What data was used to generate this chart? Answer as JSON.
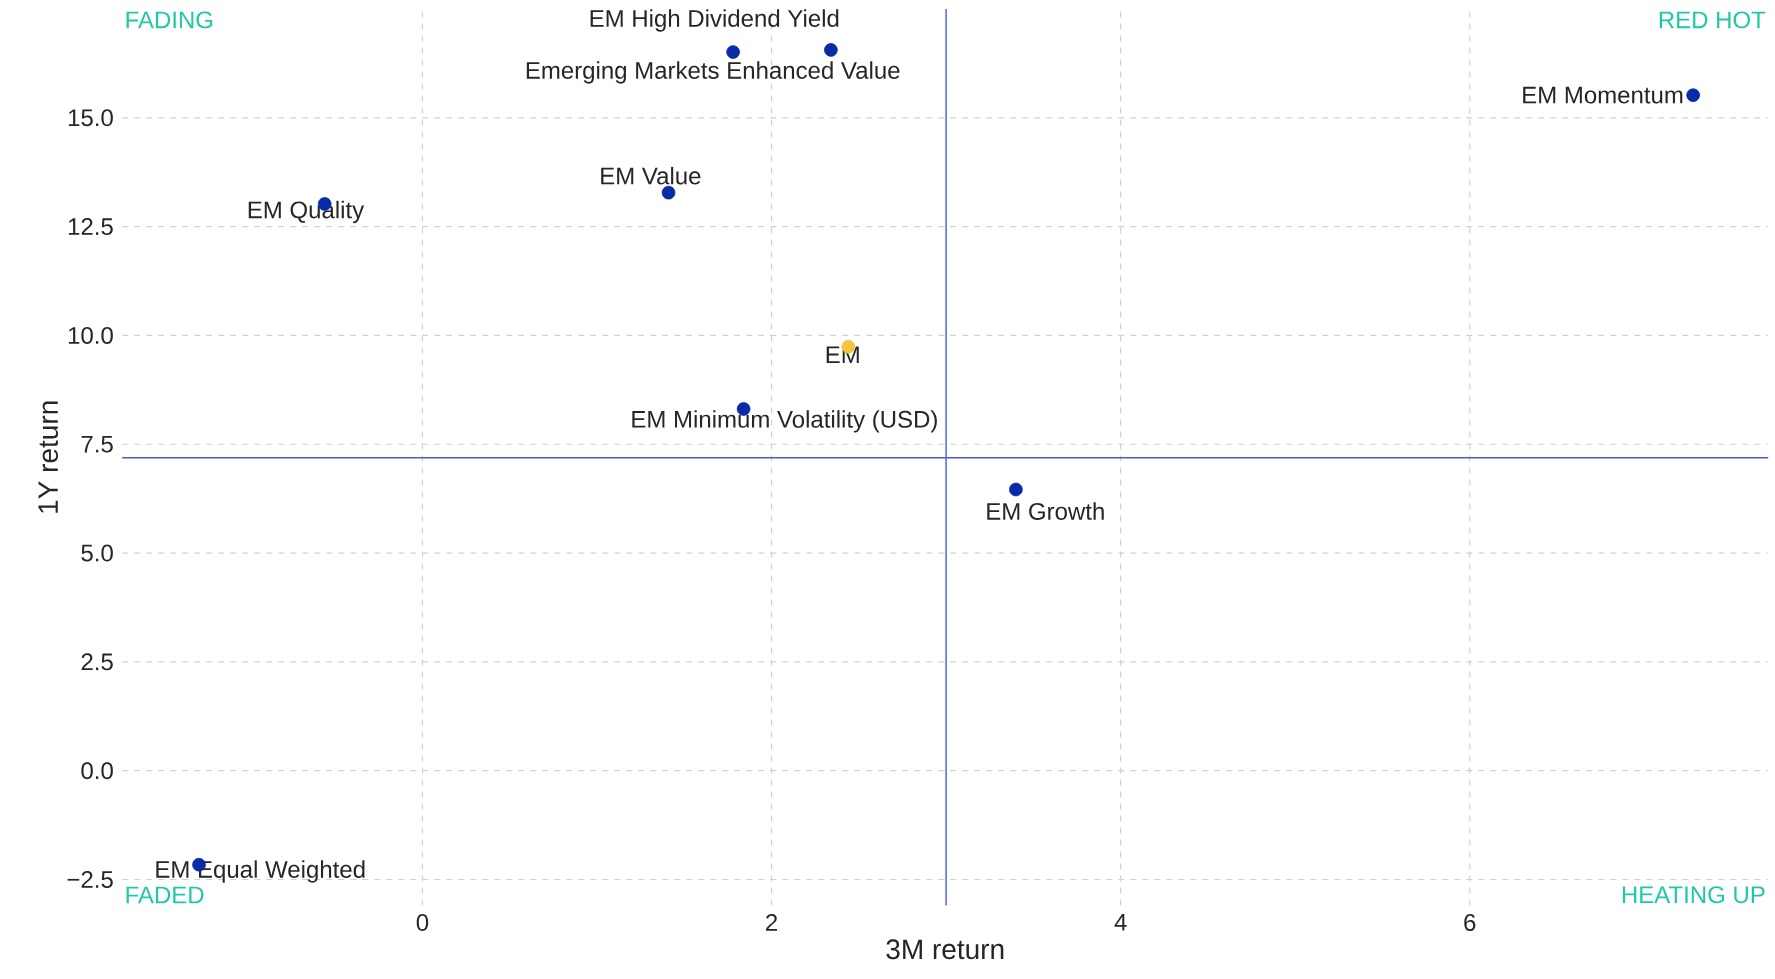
{
  "chart_data": {
    "type": "scatter",
    "xlabel": "3M return",
    "ylabel": "1Y return",
    "xlim": [
      -1.72,
      7.71
    ],
    "ylim": [
      -3.1,
      17.5
    ],
    "xticks": [
      0,
      2,
      4,
      6
    ],
    "yticks": [
      {
        "value": -2.5,
        "label": "−2.5"
      },
      {
        "value": 0,
        "label": "0.0"
      },
      {
        "value": 2.5,
        "label": "2.5"
      },
      {
        "value": 5,
        "label": "5.0"
      },
      {
        "value": 7.5,
        "label": "7.5"
      },
      {
        "value": 10,
        "label": "10.0"
      },
      {
        "value": 12.5,
        "label": "12.5"
      },
      {
        "value": 15,
        "label": "15.0"
      }
    ],
    "grid": true,
    "marker": "circle",
    "series": [
      {
        "name": "EM Momentum",
        "color": "#0a2aa8",
        "x": [
          7.28
        ],
        "values": [
          15.52
        ]
      },
      {
        "name": "EM High Dividend Yield",
        "color": "#0a2aa8",
        "x": [
          2.34
        ],
        "values": [
          16.56
        ]
      },
      {
        "name": "Emerging Markets Enhanced Value",
        "color": "#0a2aa8",
        "x": [
          1.78
        ],
        "values": [
          16.51
        ]
      },
      {
        "name": "EM Value",
        "color": "#0a2aa8",
        "x": [
          1.41
        ],
        "values": [
          13.28
        ]
      },
      {
        "name": "EM Quality",
        "color": "#0a2aa8",
        "x": [
          -0.56
        ],
        "values": [
          13.02
        ]
      },
      {
        "name": "EM",
        "color": "#f5c242",
        "x": [
          2.44
        ],
        "values": [
          9.74
        ]
      },
      {
        "name": "EM Minimum Volatility (USD)",
        "color": "#0a2aa8",
        "x": [
          1.84
        ],
        "values": [
          8.31
        ]
      },
      {
        "name": "EM Growth",
        "color": "#0a2aa8",
        "x": [
          3.4
        ],
        "values": [
          6.46
        ]
      },
      {
        "name": "EM Equal Weighted",
        "color": "#0a2aa8",
        "x": [
          -1.28
        ],
        "values": [
          -2.16
        ]
      }
    ],
    "ref_lines": [
      {
        "axis": "x",
        "value": 3.0,
        "color": "#4a5cc8"
      },
      {
        "axis": "y",
        "value": 7.19,
        "color": "#4a5cc8"
      }
    ],
    "annotations": [
      "FADING",
      "RED HOT",
      "FADED",
      "HEATING UP"
    ]
  }
}
